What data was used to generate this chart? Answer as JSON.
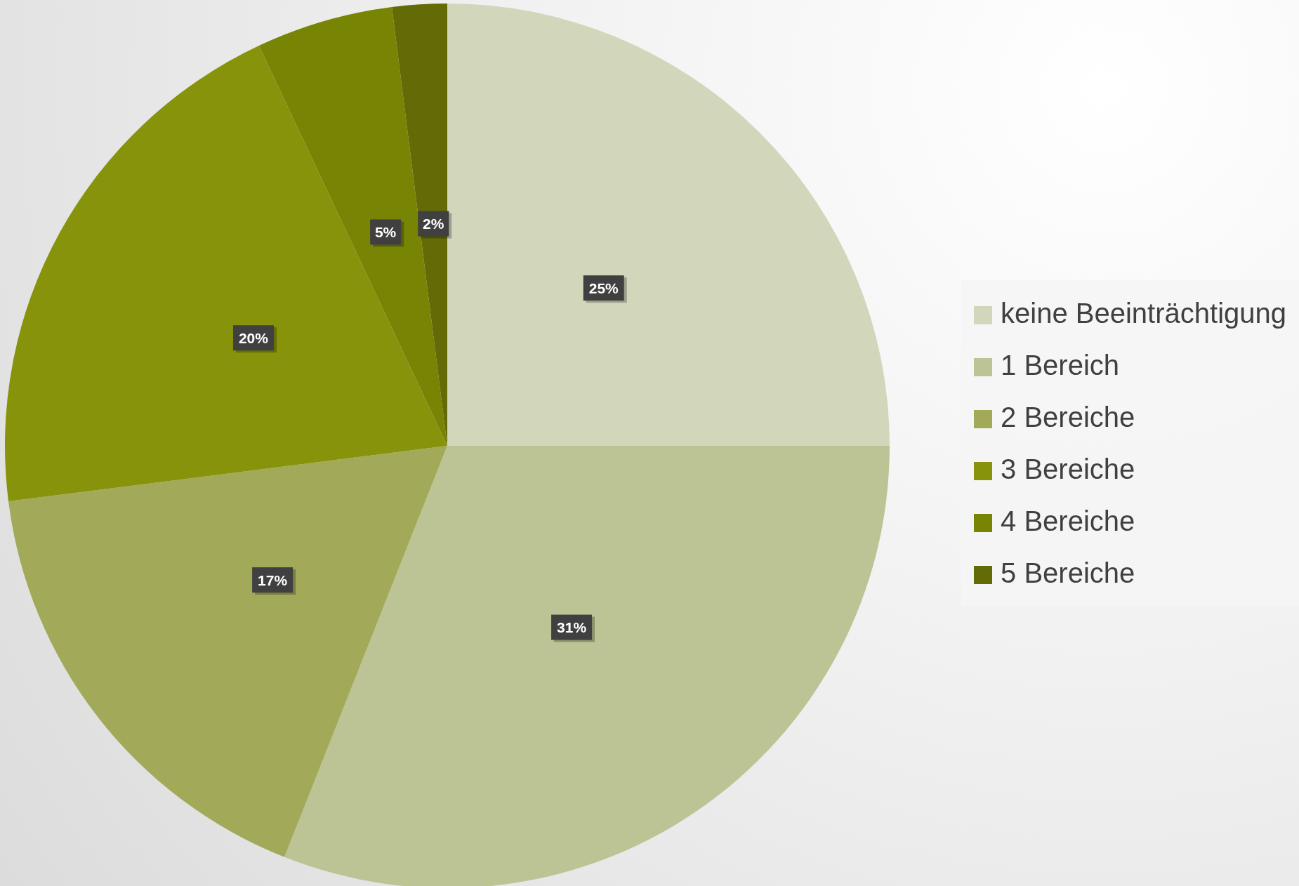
{
  "chart_data": {
    "type": "pie",
    "categories": [
      "keine Beeinträchtigung",
      "1 Bereich",
      "2 Bereiche",
      "3 Bereiche",
      "4 Bereiche",
      "5 Bereiche"
    ],
    "values": [
      25,
      31,
      17,
      20,
      5,
      2
    ],
    "colors": [
      "#d2d6bb",
      "#bcc495",
      "#a2aa5a",
      "#87930a",
      "#788404",
      "#636b06"
    ],
    "value_labels": [
      "25%",
      "31%",
      "17%",
      "20%",
      "5%",
      "2%"
    ],
    "legend": "right"
  }
}
